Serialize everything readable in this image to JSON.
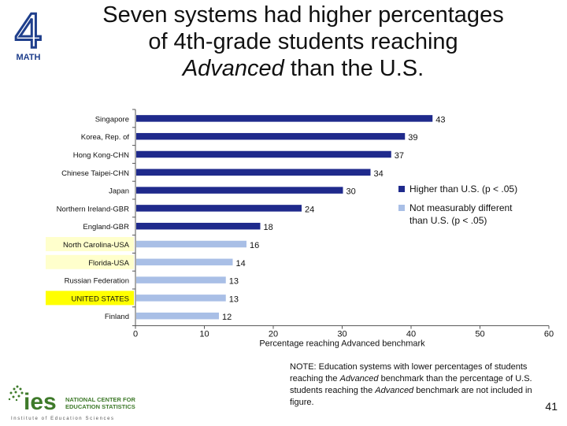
{
  "title": {
    "line1": "Seven systems had higher percentages",
    "line2": "of 4th-grade students reaching",
    "line3_italic": "Advanced",
    "line3_rest": " than the U.S."
  },
  "badge": {
    "digit": "4",
    "label": "MATH"
  },
  "colors": {
    "higher": "#1f2a8c",
    "not_different": "#a9bfe6",
    "highlight_nc_fl": "#ffffcc",
    "highlight_us": "#ffff00"
  },
  "chart_data": {
    "type": "bar",
    "orientation": "horizontal",
    "categories": [
      "Singapore",
      "Korea, Rep. of",
      "Hong Kong-CHN",
      "Chinese Taipei-CHN",
      "Japan",
      "Northern Ireland-GBR",
      "England-GBR",
      "North Carolina-USA",
      "Florida-USA",
      "Russian Federation",
      "UNITED STATES",
      "Finland"
    ],
    "values": [
      43,
      39,
      37,
      34,
      30,
      24,
      18,
      16,
      14,
      13,
      13,
      12
    ],
    "group": [
      "higher",
      "higher",
      "higher",
      "higher",
      "higher",
      "higher",
      "higher",
      "not_different",
      "not_different",
      "not_different",
      "not_different",
      "not_different"
    ],
    "highlight": [
      "",
      "",
      "",
      "",
      "",
      "",
      "",
      "light",
      "light",
      "",
      "strong",
      ""
    ],
    "xlabel": "Percentage reaching Advanced benchmark",
    "xlim": [
      0,
      60
    ],
    "xticks": [
      0,
      10,
      20,
      30,
      40,
      50,
      60
    ],
    "grid": false,
    "legend": [
      {
        "key": "higher",
        "label": "Higher than U.S. (p < .05)"
      },
      {
        "key": "not_different",
        "label_line1": "Not measurably different",
        "label_line2": "than U.S. (p < .05)"
      }
    ],
    "legend_position": "right"
  },
  "note": {
    "prefix": "NOTE: Education systems with lower percentages of students reaching the ",
    "italic1": "Advanced",
    "mid": " benchmark than the percentage of U.S. students reaching the ",
    "italic2": "Advanced",
    "suffix": " benchmark are not included in figure."
  },
  "logo": {
    "letters": "ies",
    "line1": "NATIONAL CENTER FOR",
    "line2": "EDUCATION STATISTICS",
    "tagline": "Institute of Education Sciences"
  },
  "page_number": "41"
}
